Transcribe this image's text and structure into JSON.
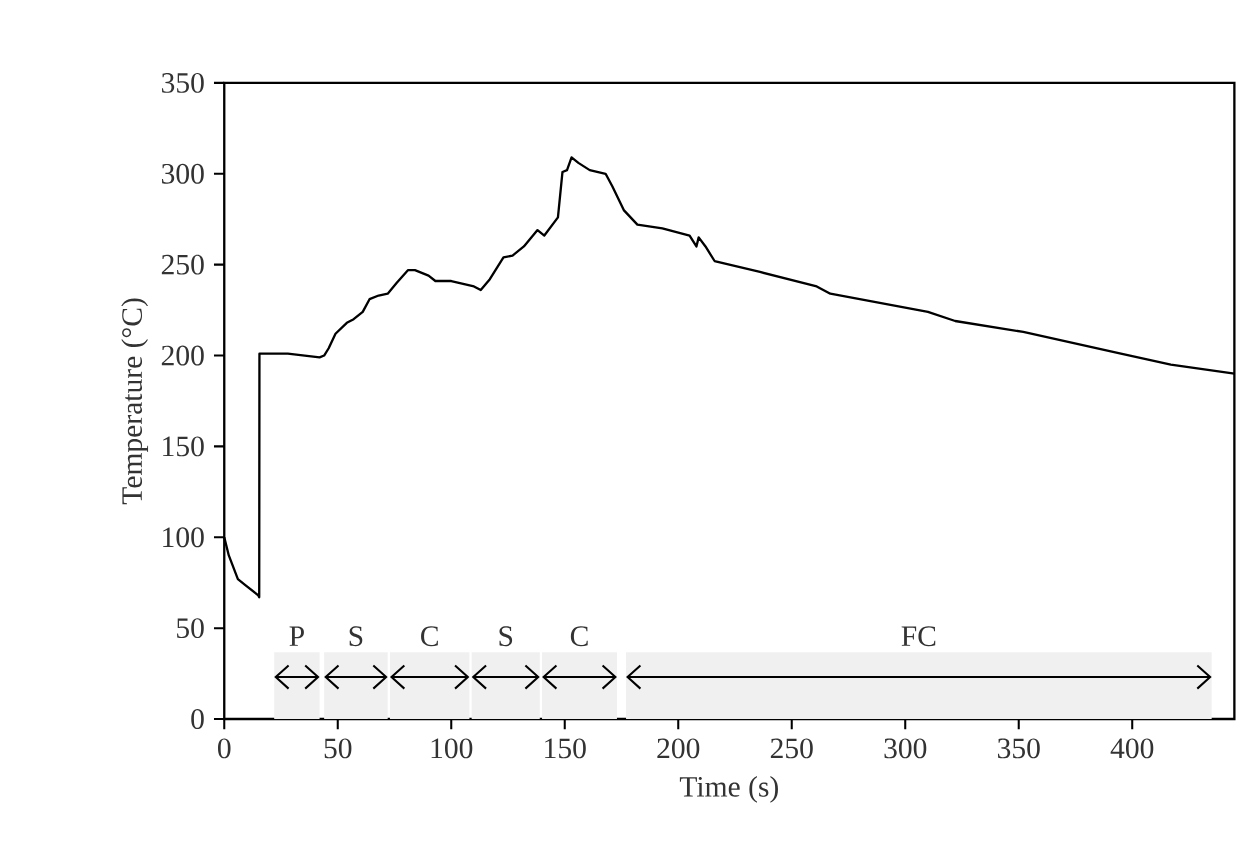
{
  "chart_data": {
    "type": "line",
    "xlabel": "Time (s)",
    "ylabel": "Temperature (°C)",
    "xlim": [
      0,
      445
    ],
    "ylim": [
      0,
      350
    ],
    "xticks": [
      0,
      50,
      100,
      150,
      200,
      250,
      300,
      350,
      400
    ],
    "yticks": [
      0,
      50,
      100,
      150,
      200,
      250,
      300,
      350
    ],
    "grid": false,
    "marker": "none",
    "line_style": "solid",
    "series": [
      {
        "color": "#000000",
        "x": [
          0,
          2,
          6,
          9,
          15,
          15.4,
          15.5,
          28,
          42,
          44,
          46,
          49,
          54,
          57,
          61,
          64,
          68,
          72,
          76,
          81,
          84,
          90,
          93,
          100,
          110,
          113,
          117,
          123,
          127,
          132,
          138,
          141,
          147,
          149,
          151,
          153,
          156,
          161,
          168,
          171,
          176,
          182,
          193,
          205,
          208,
          209,
          212,
          216,
          236,
          261,
          267,
          310,
          322,
          352,
          395,
          417,
          445
        ],
        "values": [
          100,
          90,
          77,
          74,
          68,
          67,
          201,
          201,
          199,
          200,
          204,
          212,
          218,
          220,
          224,
          231,
          233,
          234,
          240,
          247,
          247,
          244,
          241,
          241,
          238,
          236,
          242,
          254,
          255,
          260,
          269,
          266,
          276,
          301,
          302,
          309,
          306,
          302,
          300,
          293,
          280,
          272,
          270,
          266,
          260,
          265,
          260,
          252,
          246,
          238,
          234,
          224,
          219,
          213,
          201,
          195,
          190
        ]
      }
    ],
    "bands": [
      {
        "axis": "x",
        "from": 22,
        "to": 42,
        "label": "P",
        "color": "#f0f0f0"
      },
      {
        "axis": "x",
        "from": 44,
        "to": 72,
        "label": "S",
        "color": "#f0f0f0"
      },
      {
        "axis": "x",
        "from": 73,
        "to": 108,
        "label": "C",
        "color": "#f0f0f0"
      },
      {
        "axis": "x",
        "from": 109,
        "to": 139,
        "label": "S",
        "color": "#f0f0f0"
      },
      {
        "axis": "x",
        "from": 140,
        "to": 173,
        "label": "C",
        "color": "#f0f0f0"
      },
      {
        "axis": "x",
        "from": 177,
        "to": 435,
        "label": "FC",
        "color": "#f0f0f0"
      }
    ]
  }
}
